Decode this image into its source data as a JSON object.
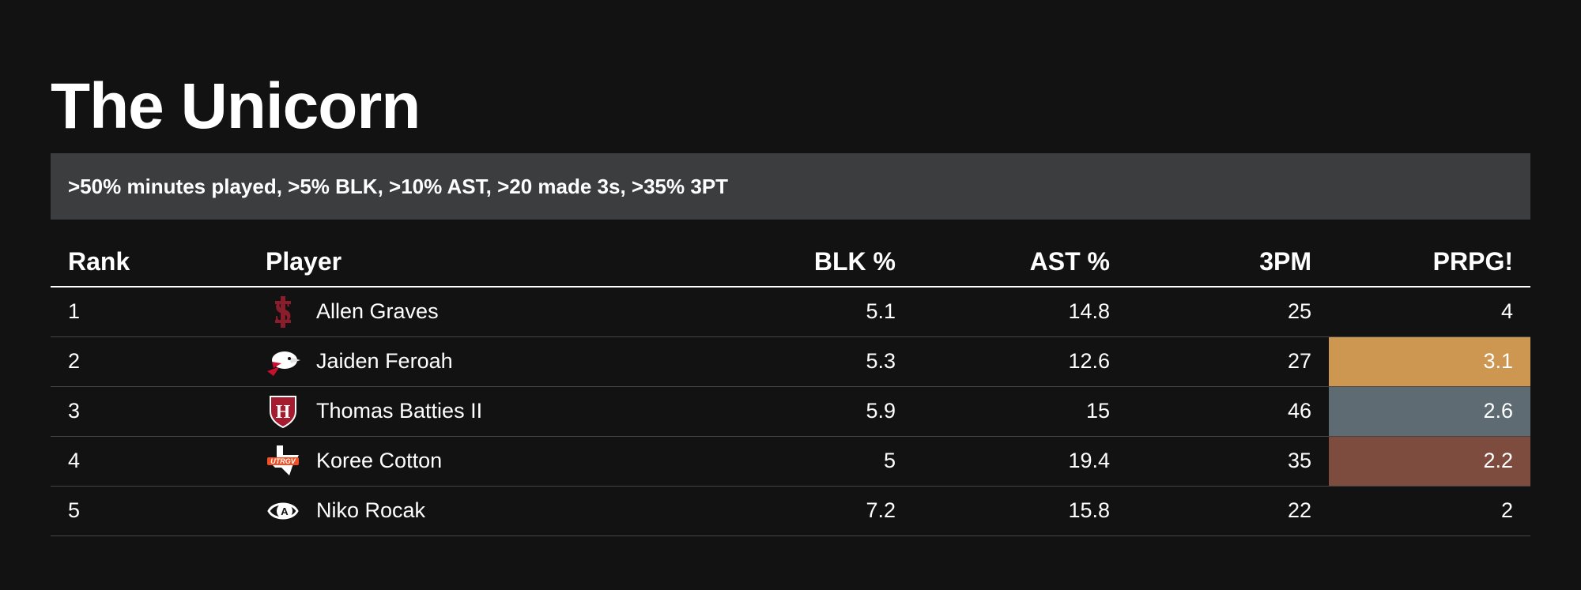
{
  "title": "The Unicorn",
  "subtitle": ">50% minutes played, >5% BLK, >10% AST, >20 made 3s, >35% 3PT",
  "columns": [
    "Rank",
    "Player",
    "BLK %",
    "AST %",
    "3PM",
    "PRPG!"
  ],
  "colors": {
    "background": "#121212",
    "subtitle_bg": "#3c3d3f",
    "gold": "#cd9651",
    "silver": "#5f6b72",
    "bronze": "#7e4c3e"
  },
  "chart_data": {
    "type": "table",
    "title": "The Unicorn",
    "subtitle": ">50% minutes played, >5% BLK, >10% AST, >20 made 3s, >35% 3PT",
    "columns": [
      "Rank",
      "Player",
      "BLK %",
      "AST %",
      "3PM",
      "PRPG!"
    ],
    "rows": [
      {
        "rank": "1",
        "player": "Allen Graves",
        "logo": "santa-clara-logo-icon",
        "blk": "5.1",
        "ast": "14.8",
        "tpm": "25",
        "prpg": "4",
        "highlight": ""
      },
      {
        "rank": "2",
        "player": "Jaiden Feroah",
        "logo": "southern-utah-logo-icon",
        "blk": "5.3",
        "ast": "12.6",
        "tpm": "27",
        "prpg": "3.1",
        "highlight": "#cd9651"
      },
      {
        "rank": "3",
        "player": "Thomas Batties II",
        "logo": "harvard-logo-icon",
        "blk": "5.9",
        "ast": "15",
        "tpm": "46",
        "prpg": "2.6",
        "highlight": "#5f6b72"
      },
      {
        "rank": "4",
        "player": "Koree Cotton",
        "logo": "utrgv-logo-icon",
        "blk": "5",
        "ast": "19.4",
        "tpm": "35",
        "prpg": "2.2",
        "highlight": "#7e4c3e"
      },
      {
        "rank": "5",
        "player": "Niko Rocak",
        "logo": "uc-davis-logo-icon",
        "blk": "7.2",
        "ast": "15.8",
        "tpm": "22",
        "prpg": "2",
        "highlight": ""
      }
    ]
  }
}
